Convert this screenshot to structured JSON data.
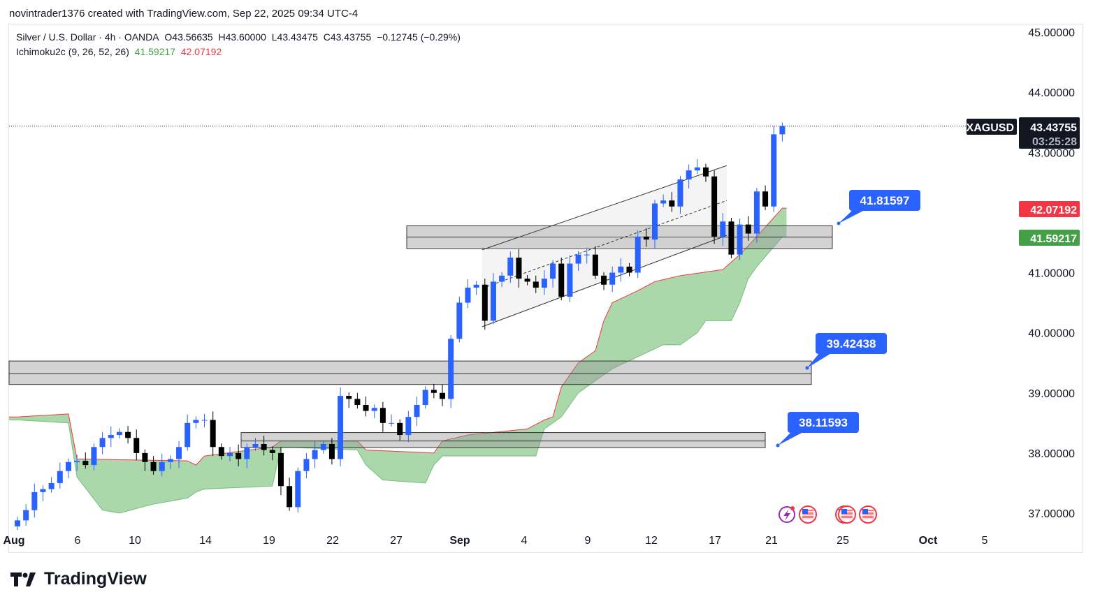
{
  "credit": "novintrader1376 created with TradingView.com, Sep 22, 2025 09:34 UTC-4",
  "legend": {
    "symbol": "Silver / U.S. Dollar · 4h · OANDA",
    "open": "O43.56635",
    "high": "H43.60000",
    "low": "L43.43475",
    "close": "C43.43755",
    "change": "−0.12745 (−0.29%)",
    "indicator": "Ichimoku2c (9, 26, 52, 26)",
    "ind_val1": "41.59217",
    "ind_val2": "42.07192"
  },
  "logo": "TradingView",
  "colors": {
    "bull": "#2962ff",
    "bear": "#000000",
    "cloud": "#a5d6a7",
    "spanA": "#43a047",
    "spanB": "#f23645",
    "callout": "#2962ff"
  },
  "chart_data": {
    "type": "candlestick",
    "symbol": "XAGUSD",
    "last_price": "43.43755",
    "countdown": "03:25:28",
    "ylim": [
      37,
      45
    ],
    "y_ticks": [
      "45.00000",
      "44.00000",
      "43.00000",
      "41.00000",
      "40.00000",
      "39.00000",
      "38.00000",
      "37.00000"
    ],
    "y_tick_values": [
      45,
      44,
      43,
      41,
      40,
      39,
      38,
      37
    ],
    "x_ticks": [
      "Aug",
      "6",
      "10",
      "14",
      "19",
      "22",
      "27",
      "Sep",
      "4",
      "9",
      "12",
      "17",
      "21",
      "25",
      "Oct",
      "5"
    ],
    "closes": [
      36.88,
      37.05,
      37.35,
      37.4,
      37.5,
      37.7,
      37.85,
      37.87,
      37.8,
      38.1,
      38.25,
      38.3,
      38.35,
      38.25,
      38.0,
      37.85,
      37.7,
      37.85,
      37.9,
      38.1,
      38.5,
      38.55,
      38.55,
      38.1,
      37.95,
      38.0,
      37.9,
      38.1,
      38.15,
      38.05,
      38.0,
      37.45,
      37.1,
      37.7,
      37.9,
      38.05,
      38.15,
      37.9,
      38.95,
      38.9,
      38.8,
      38.7,
      38.75,
      38.5,
      38.5,
      38.3,
      38.6,
      38.8,
      39.05,
      39.0,
      38.9,
      39.9,
      40.5,
      40.75,
      40.8,
      40.2,
      40.85,
      40.95,
      41.25,
      40.9,
      40.85,
      40.75,
      40.9,
      41.15,
      40.6,
      41.15,
      41.3,
      41.3,
      40.95,
      40.8,
      41.0,
      41.1,
      41.0,
      41.6,
      41.55,
      42.15,
      42.2,
      42.1,
      42.55,
      42.7,
      42.75,
      42.6,
      41.6,
      41.85,
      41.3,
      41.8,
      41.65,
      42.35,
      42.1,
      43.3,
      43.43755
    ],
    "cloud": {
      "upper_knots": [
        [
          0,
          38.6
        ],
        [
          6,
          38.65
        ],
        [
          7,
          37.9
        ],
        [
          20,
          37.87
        ],
        [
          21,
          37.8
        ],
        [
          22,
          37.95
        ],
        [
          30,
          38.1
        ],
        [
          31,
          38.2
        ],
        [
          40,
          38.2
        ],
        [
          41,
          38.05
        ],
        [
          49,
          38.0
        ],
        [
          50,
          38.2
        ],
        [
          53,
          38.3
        ],
        [
          60,
          38.4
        ],
        [
          62,
          38.55
        ],
        [
          63,
          38.6
        ],
        [
          64,
          39.1
        ],
        [
          66,
          39.5
        ],
        [
          68,
          39.7
        ],
        [
          69,
          40.2
        ],
        [
          70,
          40.5
        ],
        [
          73,
          40.7
        ],
        [
          75,
          40.85
        ],
        [
          78,
          40.95
        ],
        [
          83,
          41.05
        ],
        [
          85,
          41.3
        ],
        [
          87,
          41.6
        ],
        [
          90,
          42.07192
        ]
      ],
      "lower_knots": [
        [
          0,
          38.55
        ],
        [
          6,
          38.5
        ],
        [
          7,
          37.6
        ],
        [
          10,
          37.05
        ],
        [
          12,
          37.0
        ],
        [
          16,
          37.15
        ],
        [
          20,
          37.25
        ],
        [
          21,
          37.35
        ],
        [
          22,
          37.4
        ],
        [
          30,
          37.45
        ],
        [
          31,
          38.1
        ],
        [
          40,
          38.05
        ],
        [
          41,
          37.8
        ],
        [
          43,
          37.55
        ],
        [
          48,
          37.5
        ],
        [
          49,
          37.8
        ],
        [
          50,
          37.95
        ],
        [
          61,
          37.95
        ],
        [
          62,
          38.4
        ],
        [
          64,
          38.6
        ],
        [
          66,
          39.0
        ],
        [
          68,
          39.2
        ],
        [
          70,
          39.4
        ],
        [
          76,
          39.8
        ],
        [
          78,
          39.8
        ],
        [
          80,
          40.0
        ],
        [
          81,
          40.2
        ],
        [
          84,
          40.2
        ],
        [
          85,
          40.5
        ],
        [
          86,
          40.9
        ],
        [
          87,
          41.1
        ],
        [
          90,
          41.59217
        ]
      ]
    },
    "zones": [
      {
        "top": 41.78,
        "mid": 41.59,
        "bottom": 41.4,
        "label": "41.81597"
      },
      {
        "top": 39.53,
        "mid": 39.32,
        "bottom": 39.14,
        "label": "39.42438"
      },
      {
        "top": 38.34,
        "mid": 38.2,
        "bottom": 38.09,
        "label": "38.11593"
      }
    ],
    "channel": {
      "upper": [
        41.38,
        42.78
      ],
      "lower": [
        40.1,
        41.62
      ]
    },
    "price_labels": {
      "spanB": "42.07192",
      "spanA": "41.59217"
    }
  }
}
